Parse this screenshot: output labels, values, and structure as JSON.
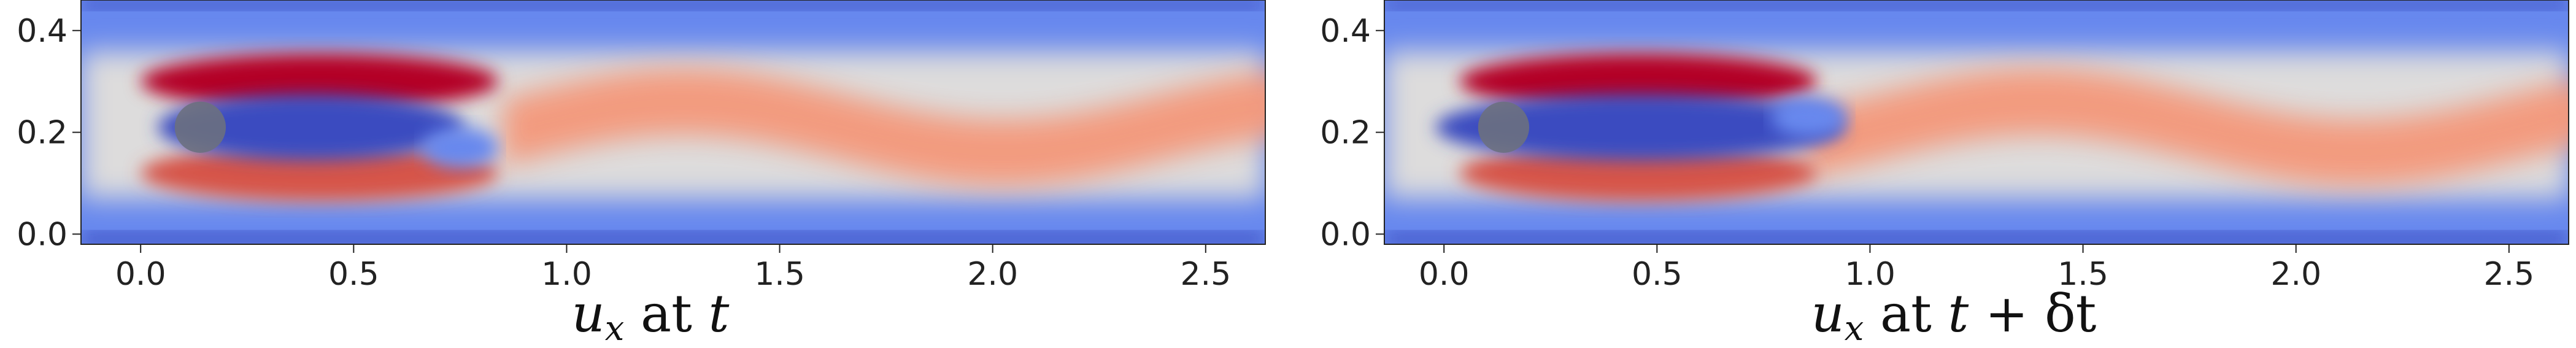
{
  "chart_data": [
    {
      "type": "heatmap",
      "title": "",
      "xlabel": "u_x at t",
      "ylabel": "",
      "x_ticks": [
        0.0,
        0.5,
        1.0,
        1.5,
        2.0,
        2.5
      ],
      "x_tick_labels": [
        "0.0",
        "0.5",
        "1.0",
        "1.5",
        "2.0",
        "2.5"
      ],
      "y_ticks": [
        0.0,
        0.2,
        0.4
      ],
      "y_tick_labels": [
        "0.0",
        "0.2",
        "0.4"
      ],
      "xlim": [
        -0.14,
        2.64
      ],
      "ylim": [
        -0.02,
        0.46
      ],
      "cylinder": {
        "cx": 0.14,
        "cy": 0.21,
        "r": 0.06
      },
      "colormap": "coolwarm",
      "wake_shift": 0.0,
      "caption_parts": {
        "var": "u",
        "sub": "x",
        "mid": " at ",
        "time": "t",
        "suffix": ""
      }
    },
    {
      "type": "heatmap",
      "title": "",
      "xlabel": "u_x at t + δt",
      "ylabel": "",
      "x_ticks": [
        0.0,
        0.5,
        1.0,
        1.5,
        2.0,
        2.5
      ],
      "x_tick_labels": [
        "0.0",
        "0.5",
        "1.0",
        "1.5",
        "2.0",
        "2.5"
      ],
      "y_ticks": [
        0.0,
        0.2,
        0.4
      ],
      "y_tick_labels": [
        "0.0",
        "0.2",
        "0.4"
      ],
      "xlim": [
        -0.14,
        2.64
      ],
      "ylim": [
        -0.02,
        0.46
      ],
      "cylinder": {
        "cx": 0.14,
        "cy": 0.21,
        "r": 0.06
      },
      "colormap": "coolwarm",
      "wake_shift": 0.12,
      "caption_parts": {
        "var": "u",
        "sub": "x",
        "mid": " at ",
        "time": "t",
        "suffix": " + δt"
      }
    }
  ],
  "colors": {
    "deep_blue": "#3b4cc0",
    "mid_blue": "#6788ee",
    "light": "#dddcdc",
    "light_red": "#f4987a",
    "red": "#d6544a",
    "deep_red": "#b40426",
    "cylinder": "#6b7080"
  }
}
